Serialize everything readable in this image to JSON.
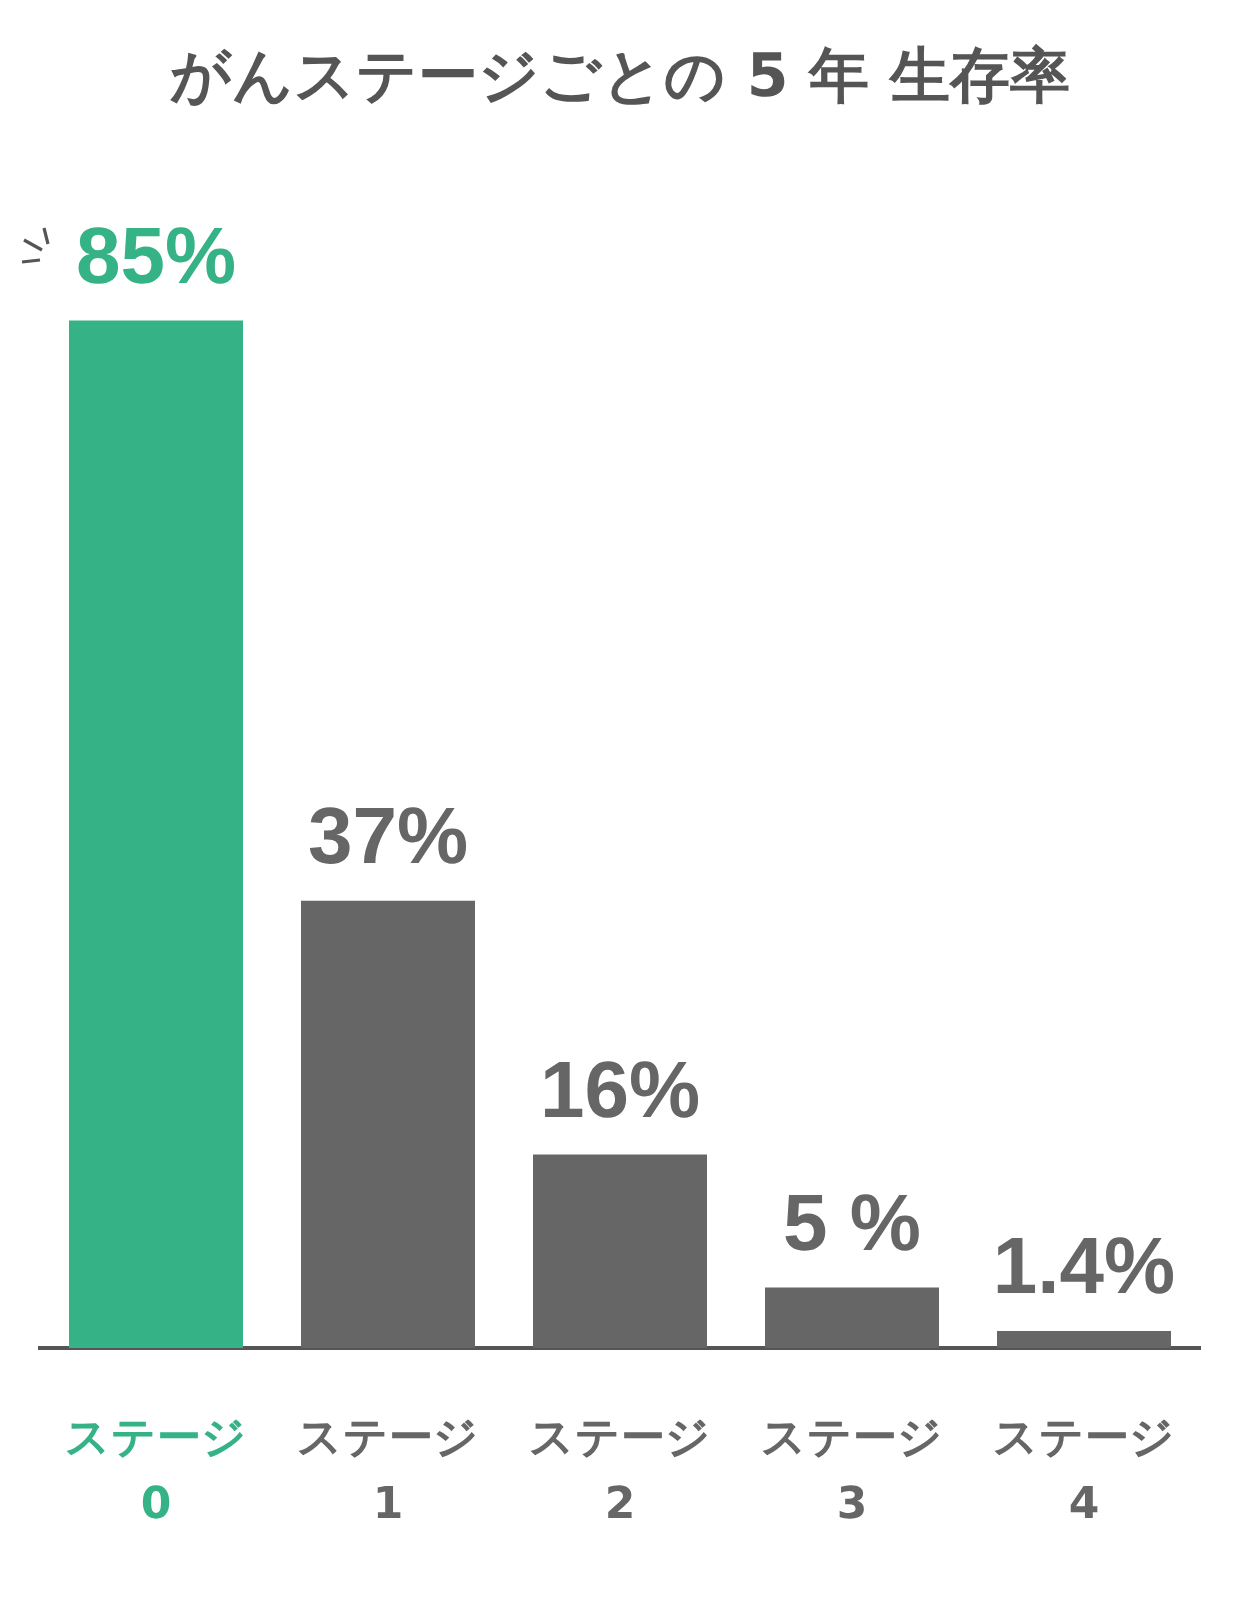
{
  "chart_data": {
    "type": "bar",
    "title": "がんステージごとの 5 年 生存率",
    "categories": [
      "ステージ 0",
      "ステージ 1",
      "ステージ 2",
      "ステージ 3",
      "ステージ 4"
    ],
    "values": [
      85,
      37,
      16,
      5,
      1.4
    ],
    "value_labels": [
      "85%",
      "37%",
      "16%",
      "5 %",
      "1.4%"
    ],
    "colors": [
      "#35b386",
      "#666666",
      "#666666",
      "#666666",
      "#666666"
    ],
    "grid": false,
    "legend": false
  }
}
